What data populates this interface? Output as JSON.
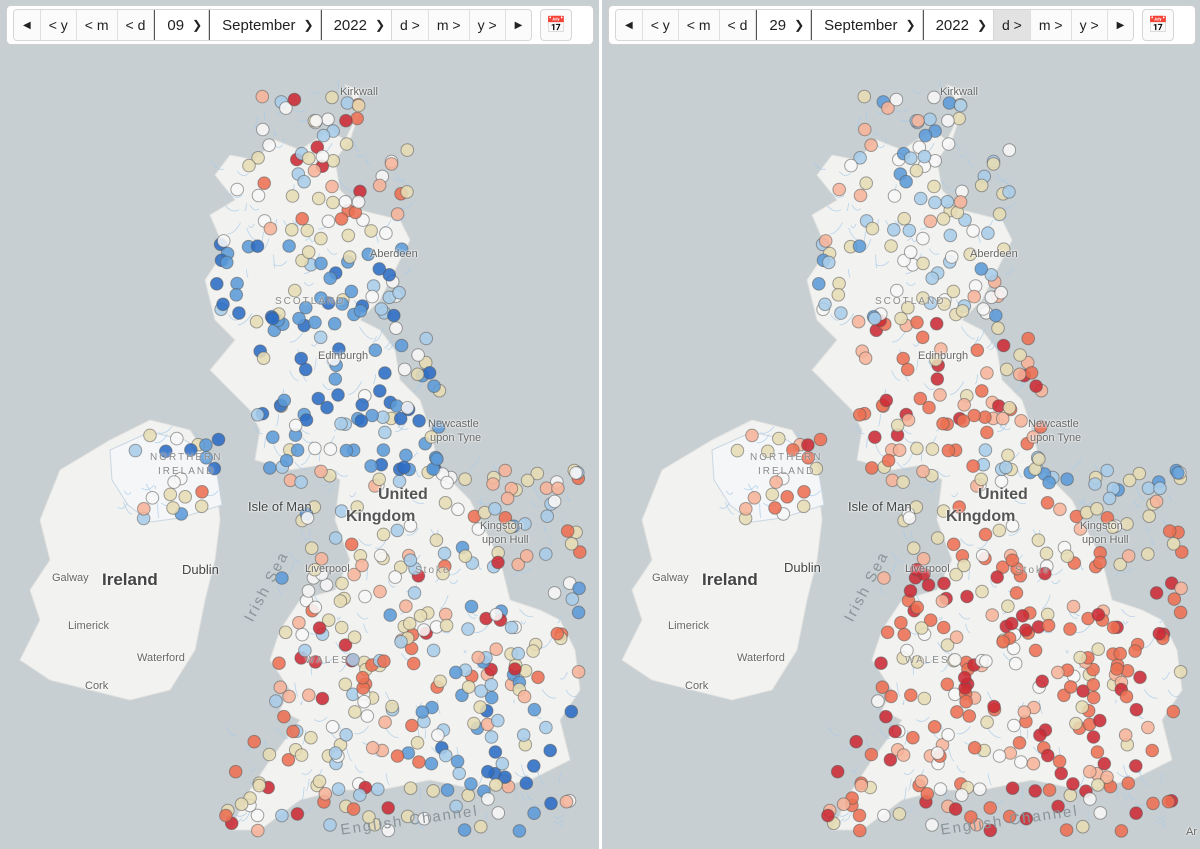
{
  "panels": [
    {
      "id": "left",
      "toolbar": {
        "prev_year": "< y",
        "prev_month": "< m",
        "prev_day": "< d",
        "day": "09",
        "month": "September",
        "year": "2022",
        "next_day": "d >",
        "next_month": "m >",
        "next_year": "y >",
        "prev_icon": "triangle-left-icon",
        "next_icon": "triangle-right-icon",
        "calendar_icon": "calendar-icon",
        "active_button": ""
      },
      "station_palette": "blue-dominant (wetter than normal across Scotland, north and southeast England)"
    },
    {
      "id": "right",
      "toolbar": {
        "prev_year": "< y",
        "prev_month": "< m",
        "prev_day": "< d",
        "day": "29",
        "month": "September",
        "year": "2022",
        "next_day": "d >",
        "next_month": "m >",
        "next_year": "y >",
        "prev_icon": "triangle-left-icon",
        "next_icon": "triangle-right-icon",
        "calendar_icon": "calendar-icon",
        "active_button": "next_day"
      },
      "station_palette": "red-dominant (drier than normal across central Scotland, Wales and England)"
    }
  ],
  "map_labels": {
    "ireland": "Ireland",
    "dublin": "Dublin",
    "galway": "Galway",
    "limerick": "Limerick",
    "waterford": "Waterford",
    "cork": "Cork",
    "isle_of_man": "Isle of Man",
    "irish_sea": "Irish Sea",
    "united_kingdom_1": "United",
    "united_kingdom_2": "Kingdom",
    "liverpool": "Liverpool",
    "newcastle_1": "Newcastle",
    "newcastle_2": "upon Tyne",
    "hull_1": "Kingston",
    "hull_2": "upon Hull",
    "aberdeen": "Aberdeen",
    "edinburgh": "Edinburgh",
    "kirkwall": "Kirkwall",
    "scotland": "SCOTLAND",
    "northern_ireland_1": "NORTHERN",
    "northern_ireland_2": "IRELAND",
    "wales": "WALES",
    "english_channel": "English Channel",
    "stoke": "Stoke",
    "edge_label": "Ar"
  },
  "colors": {
    "sea": "#c8cfd2",
    "land": "#f2f2f0",
    "wet_strong": "#2b6cc4",
    "wet": "#5b9bd8",
    "wet_light": "#a9cde9",
    "normal": "#e6dcb4",
    "normal_white": "#f7f7f7",
    "dry_light": "#f6b49a",
    "dry": "#ec6f52",
    "dry_strong": "#cc2a34"
  }
}
